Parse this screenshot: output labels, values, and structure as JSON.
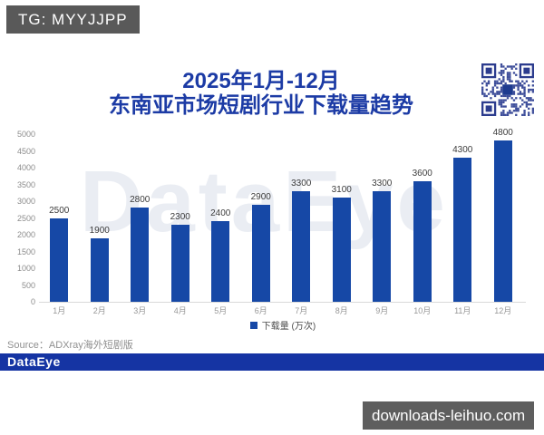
{
  "page": {
    "tg_badge": "TG: MYYJJPP",
    "site_badge": "downloads-leihuo.com"
  },
  "title": {
    "line1": "2025年1月-12月",
    "line2": "东南亚市场短剧行业下载量趋势"
  },
  "chart_data": {
    "type": "bar",
    "title": "2025年1月-12月 东南亚市场短剧行业下载量趋势",
    "categories": [
      "1月",
      "2月",
      "3月",
      "4月",
      "5月",
      "6月",
      "7月",
      "8月",
      "9月",
      "10月",
      "11月",
      "12月"
    ],
    "values": [
      2500,
      1900,
      2800,
      2300,
      2400,
      2900,
      3300,
      3100,
      3300,
      3600,
      4300,
      4800
    ],
    "legend": "下载量 (万次)",
    "legend_position": "bottom",
    "xlabel": "",
    "ylabel": "",
    "ylim": [
      0,
      5000
    ],
    "ytick_step": 500,
    "grid": false,
    "value_labels": true,
    "bar_color": "#1648a6"
  },
  "source": {
    "text": "Source：ADXray海外短剧版"
  },
  "footer": {
    "logo": "DataEye"
  },
  "watermark": {
    "text": "DataEye"
  },
  "icons": {
    "qr": "qr-code-icon",
    "legend_swatch": "legend-swatch-icon"
  },
  "colors": {
    "bar": "#1648a6",
    "title": "#1c3ba5",
    "footer_bar": "#1534a3",
    "badge_bg": "#595959",
    "site_badge_bg": "#5e5e5e",
    "axis_label": "#8c8c8c",
    "value_label": "#3c3c3c",
    "qr_module": "#3c4c99"
  }
}
